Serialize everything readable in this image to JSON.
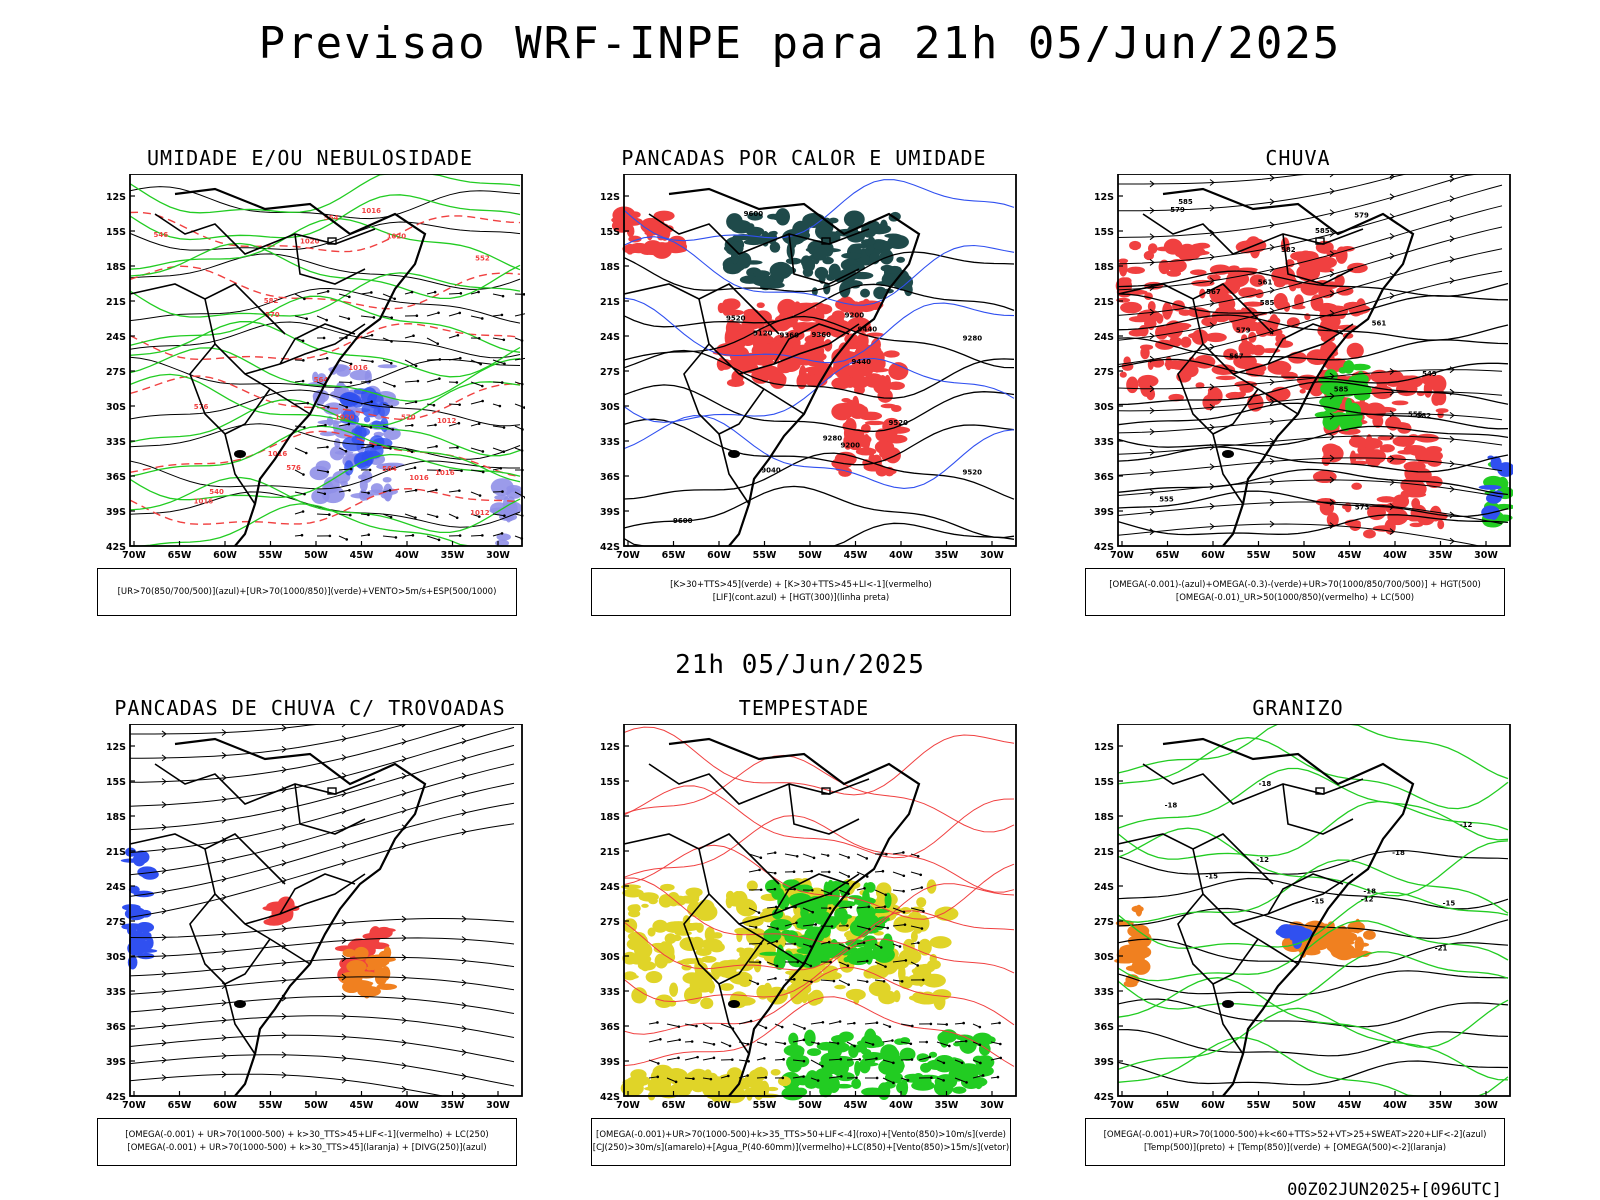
{
  "title": "Previsao WRF-INPE  para 21h 05/Jun/2025",
  "subtitle": "21h 05/Jun/2025",
  "footer": "00Z02JUN2025+[096UTC]",
  "lat_labels": [
    "12S",
    "15S",
    "18S",
    "21S",
    "24S",
    "27S",
    "30S",
    "33S",
    "36S",
    "39S",
    "42S"
  ],
  "lon_labels": [
    "70W",
    "65W",
    "60W",
    "55W",
    "50W",
    "45W",
    "40W",
    "35W",
    "30W"
  ],
  "panels": [
    {
      "title": "UMIDADE E/OU NEBULOSIDADE",
      "legend": [
        "[UR>70(850/700/500)](azul)+[UR>70(1000/850)](verde)+VENTO>5m/s+ESP(500/1000)"
      ]
    },
    {
      "title": "PANCADAS POR CALOR E UMIDADE",
      "legend": [
        "[K>30+TTS>45](verde) + [K>30+TTS>45+LI<-1](vermelho)",
        "[LIF](cont.azul) + [HGT(300)](linha preta)"
      ]
    },
    {
      "title": "CHUVA",
      "legend": [
        "[OMEGA(-0.001)-(azul)+OMEGA(-0.3)-(verde)+UR>70(1000/850/700/500)] + HGT(500)",
        "[OMEGA(-0.01)_UR>50(1000/850)(vermelho) + LC(500)"
      ]
    },
    {
      "title": "PANCADAS DE CHUVA C/ TROVOADAS",
      "legend": [
        "[OMEGA(-0.001) + UR>70(1000-500) + k>30_TTS>45+LIF<-1](vermelho) + LC(250)",
        "[OMEGA(-0.001) + UR>70(1000-500) + k>30_TTS>45](laranja) + [DIVG(250)](azul)"
      ]
    },
    {
      "title": "TEMPESTADE",
      "legend": [
        "[OMEGA(-0.001)+UR>70(1000-500)+k>35_TTS>50+LIF<-4](roxo)+[Vento(850)>10m/s](verde)",
        "[CJ(250)>30m/s](amarelo)+[Agua_P(40-60mm)](vermelho)+LC(850)+[Vento(850)>15m/s](vetor)"
      ]
    },
    {
      "title": "GRANIZO",
      "legend": [
        "[OMEGA(-0.001)+UR>70(1000-500)+k<60+TTS>52+VT>25+SWEAT>220+LIF<-2](azul)",
        "[Temp(500)](preto) + [Temp(850)](verde) + [OMEGA(500)<-2](laranja)"
      ]
    }
  ],
  "contour_labels": {
    "p0": [
      "1016",
      "1012",
      "1016",
      "1020",
      "1020",
      "1016",
      "1016",
      "1020",
      "1016",
      "1016",
      "1012",
      "570",
      "576",
      "564",
      "564",
      "582",
      "570",
      "576",
      "564",
      "552",
      "546",
      "540"
    ],
    "p1": [
      "9600",
      "9520",
      "9600",
      "9520",
      "9520",
      "9440",
      "9440",
      "9360",
      "9360",
      "9280",
      "9200",
      "9280",
      "9120",
      "9040",
      "9200"
    ],
    "p2": [
      "585",
      "585",
      "585",
      "579",
      "579",
      "573",
      "567",
      "561",
      "561",
      "555",
      "555",
      "549",
      "567",
      "579",
      "582",
      "582",
      "585"
    ],
    "p5": [
      "-12",
      "-12",
      "-15",
      "-18",
      "-18",
      "-18",
      "-18",
      "-21",
      "-15",
      "-15",
      "-12"
    ]
  },
  "colors": {
    "red": "#f04040",
    "green": "#22cc22",
    "blue": "#3050f0",
    "lilac": "#9090e8",
    "darkteal": "#1f4a4a",
    "yellow": "#e0d428",
    "orange": "#f08020"
  }
}
